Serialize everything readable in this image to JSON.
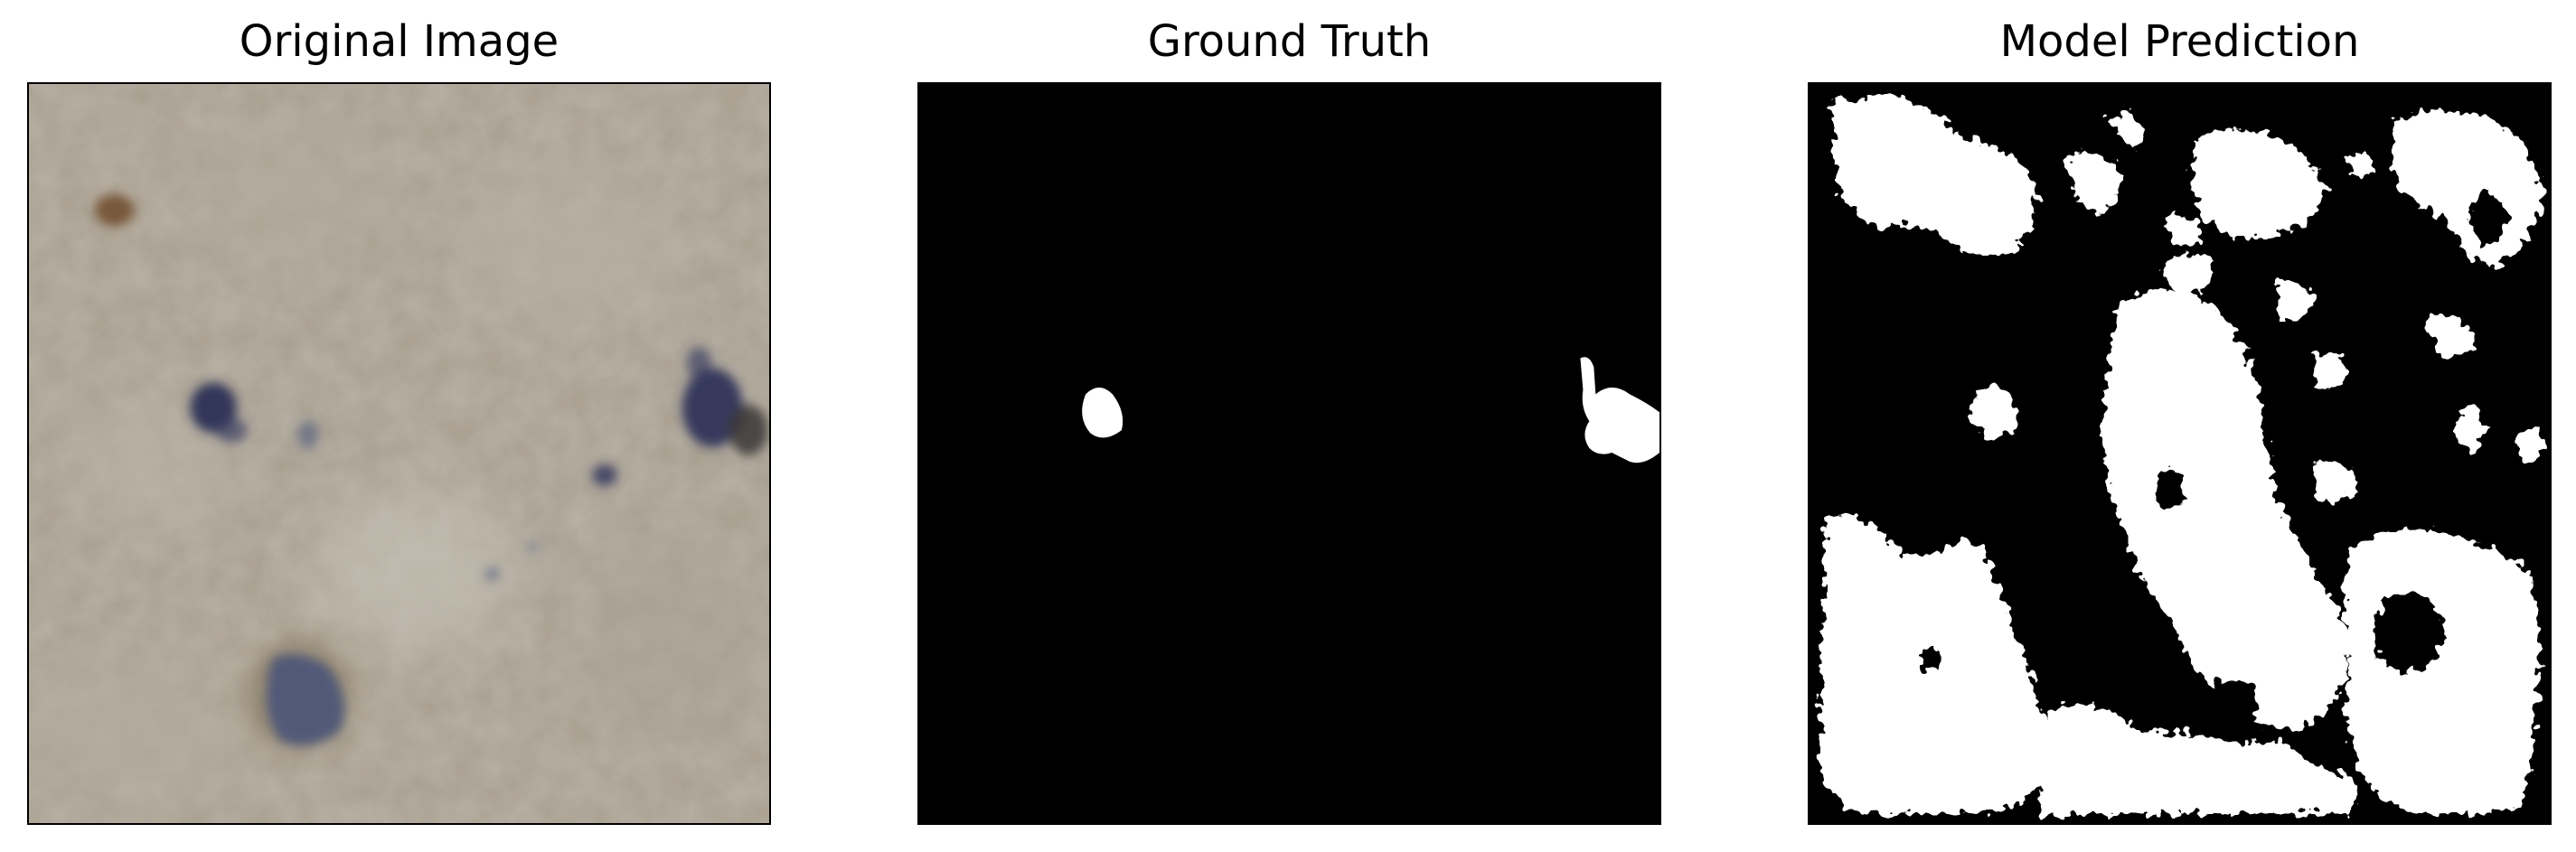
{
  "figure": {
    "panels": [
      {
        "title": "Original Image",
        "content": "photo"
      },
      {
        "title": "Ground Truth",
        "content": "binary-mask"
      },
      {
        "title": "Model Prediction",
        "content": "binary-mask"
      }
    ],
    "colors": {
      "background": "#ffffff",
      "photo_base": "#a79e8f",
      "stain_dark": "#2a2f55",
      "stain_blue": "#4b5678",
      "stain_brown": "#6e4a2a",
      "mask_background": "#000000",
      "mask_foreground": "#ffffff"
    }
  }
}
